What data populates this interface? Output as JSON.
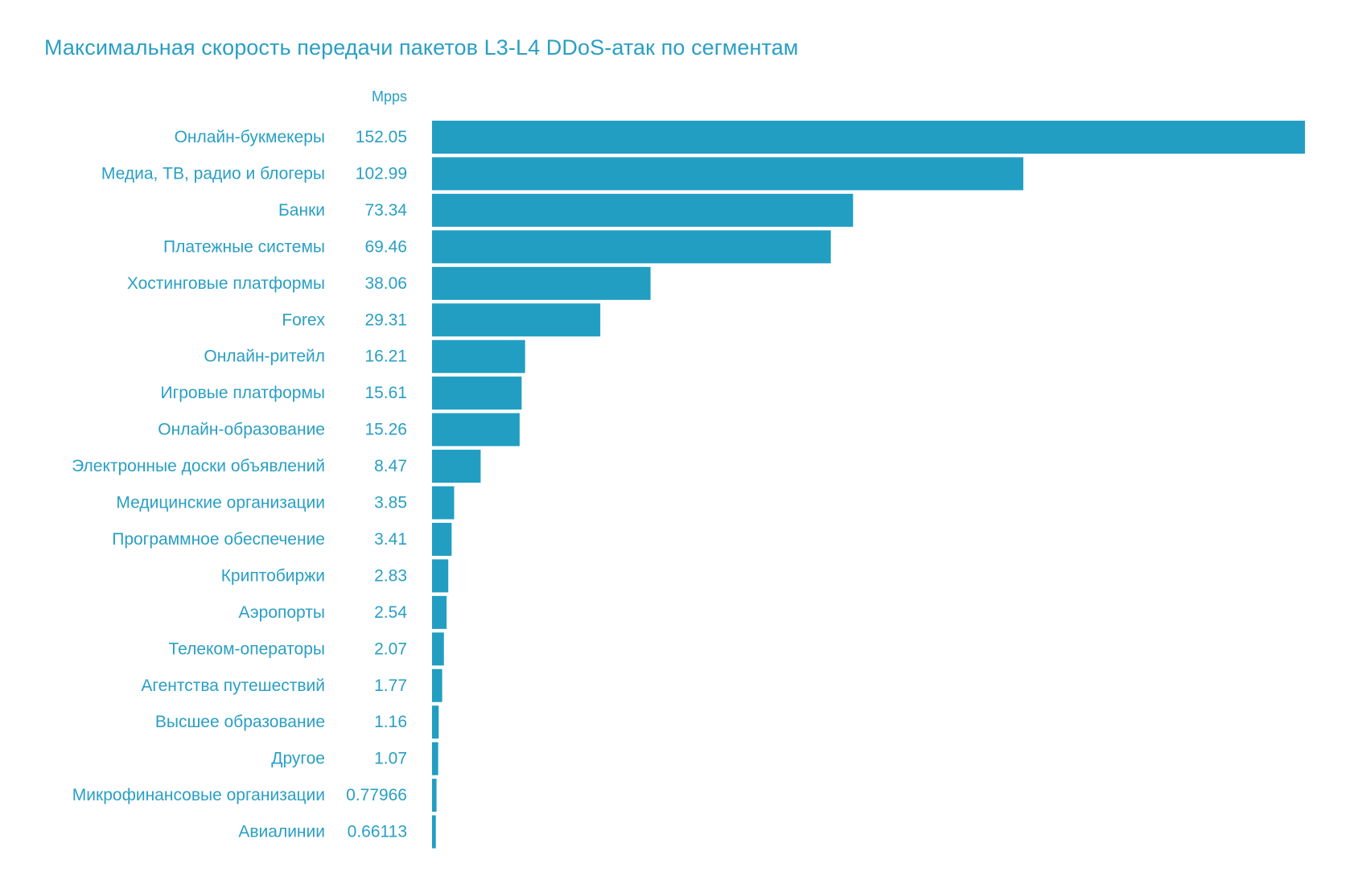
{
  "chart_data": {
    "type": "bar",
    "orientation": "horizontal",
    "title": "Максимальная скорость передачи пакетов L3-L4 DDoS-атак по сегментам",
    "unit": "Mpps",
    "categories": [
      "Онлайн-букмекеры",
      "Медиа, ТВ, радио и блогеры",
      "Банки",
      "Платежные системы",
      "Хостинговые платформы",
      "Forex",
      "Онлайн-ритейл",
      "Игровые платформы",
      "Онлайн-образование",
      "Электронные доски объявлений",
      "Медицинские организации",
      "Программное обеспечение",
      "Криптобиржи",
      "Аэропорты",
      "Телеком-операторы",
      "Агентства путешествий",
      "Высшее образование",
      "Другое",
      "Микрофинансовые организации",
      "Авиалинии"
    ],
    "values": [
      152.05,
      102.99,
      73.34,
      69.46,
      38.06,
      29.31,
      16.21,
      15.61,
      15.26,
      8.47,
      3.85,
      3.41,
      2.83,
      2.54,
      2.07,
      1.77,
      1.16,
      1.07,
      0.77966,
      0.66113
    ],
    "value_labels": [
      "152.05",
      "102.99",
      "73.34",
      "69.46",
      "38.06",
      "29.31",
      "16.21",
      "15.61",
      "15.26",
      "8.47",
      "3.85",
      "3.41",
      "2.83",
      "2.54",
      "2.07",
      "1.77",
      "1.16",
      "1.07",
      "0.77966",
      "0.66113"
    ],
    "xlim": [
      0,
      152.05
    ],
    "grid": false,
    "legend": "none",
    "colors": {
      "bar": "#219ec2",
      "text": "#2a9fc4"
    }
  }
}
